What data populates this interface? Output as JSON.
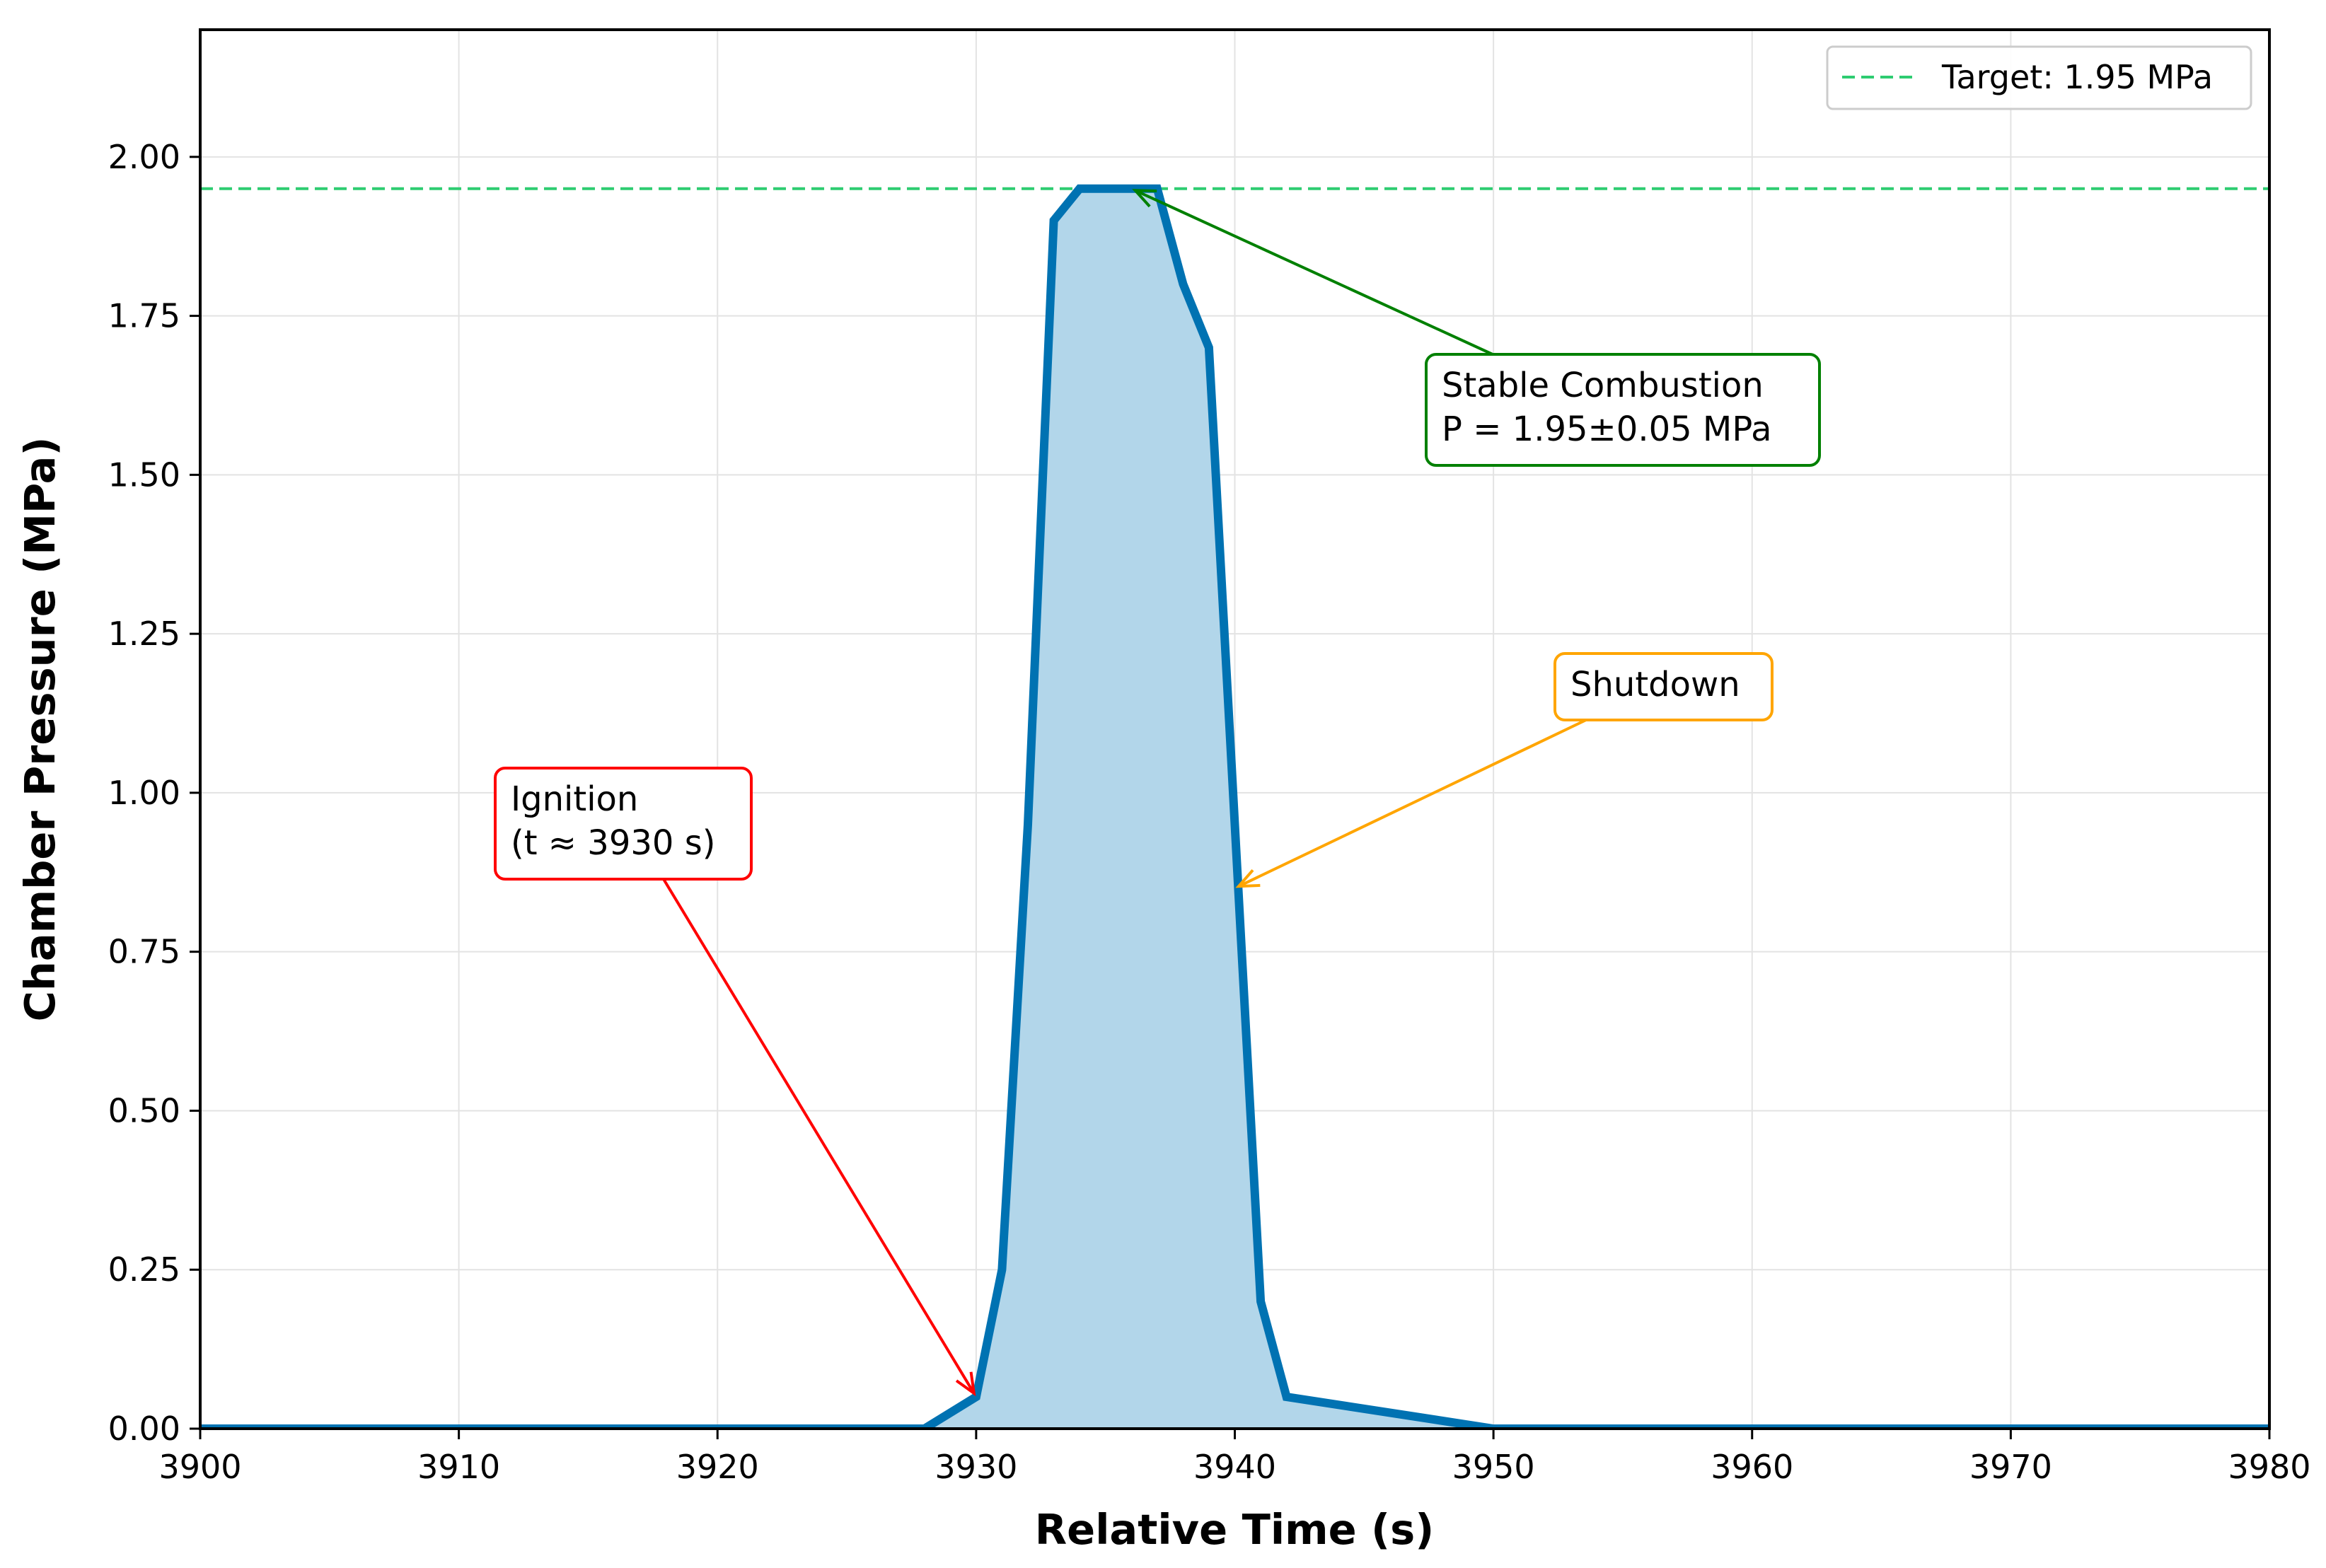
{
  "chart_data": {
    "type": "area",
    "xlabel": "Relative Time (s)",
    "ylabel": "Chamber Pressure (MPa)",
    "xlim": [
      3900,
      3980
    ],
    "ylim": [
      0,
      2.2
    ],
    "xticks": [
      3900,
      3910,
      3920,
      3930,
      3940,
      3950,
      3960,
      3970,
      3980
    ],
    "yticks": [
      "0.00",
      "0.25",
      "0.50",
      "0.75",
      "1.00",
      "1.25",
      "1.50",
      "1.75",
      "2.00"
    ],
    "grid": true,
    "legend_position": "top-right",
    "series": [
      {
        "color": "#0072b2",
        "fill": "#b2d6ea",
        "x": [
          3900,
          3928,
          3930,
          3931,
          3932,
          3933,
          3934,
          3935,
          3936,
          3937,
          3938,
          3939,
          3940,
          3941,
          3942,
          3950,
          3980
        ],
        "y": [
          0.0,
          0.0,
          0.05,
          0.25,
          0.95,
          1.9,
          1.95,
          1.95,
          1.95,
          1.95,
          1.8,
          1.7,
          0.95,
          0.2,
          0.05,
          0.0,
          0.0
        ]
      }
    ],
    "reference_line": {
      "y": 1.95,
      "label": "Target: 1.95 MPa",
      "color": "#2ecc71",
      "style": "dashed"
    },
    "annotations": [
      {
        "lines": [
          "Ignition",
          "(t ≈ 3930 s)"
        ],
        "color": "#ff0000",
        "point": [
          3930,
          0.05
        ]
      },
      {
        "lines": [
          "Stable Combustion",
          "P = 1.95±0.05 MPa"
        ],
        "color": "#008000",
        "point": [
          3936,
          1.95
        ]
      },
      {
        "lines": [
          "Shutdown"
        ],
        "color": "#ffa500",
        "point": [
          3940,
          0.85
        ]
      }
    ]
  }
}
